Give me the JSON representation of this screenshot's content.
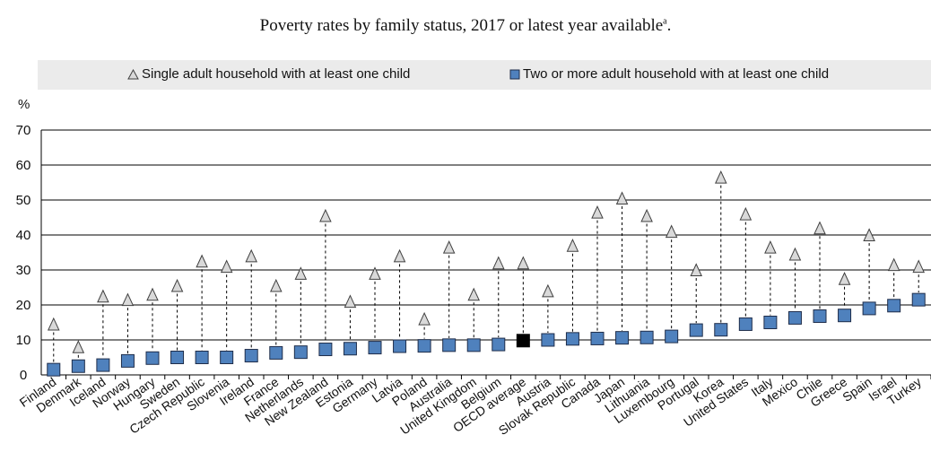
{
  "chart_data": {
    "type": "scatter",
    "title": "Poverty rates by family status, 2017 or latest year available",
    "title_sup": "a",
    "unit_label": "%",
    "ylim": [
      0,
      70
    ],
    "yticks": [
      0,
      10,
      20,
      30,
      40,
      50,
      60,
      70
    ],
    "legend_position": "top",
    "categories": [
      "Finland",
      "Denmark",
      "Iceland",
      "Norway",
      "Hungary",
      "Sweden",
      "Czech Republic",
      "Slovenia",
      "Ireland",
      "France",
      "Netherlands",
      "New Zealand",
      "Estonia",
      "Germany",
      "Latvia",
      "Poland",
      "Australia",
      "United Kingdom",
      "Belgium",
      "OECD average",
      "Austria",
      "Slovak Republic",
      "Canada",
      "Japan",
      "Lithuania",
      "Luxembourg",
      "Portugal",
      "Korea",
      "United States",
      "Italy",
      "Mexico",
      "Chile",
      "Greece",
      "Spain",
      "Israel",
      "Turkey"
    ],
    "highlight_category": "OECD average",
    "series": [
      {
        "name": "Single adult household with at least one child",
        "marker": "triangle",
        "values": [
          14.5,
          8,
          22.5,
          21.5,
          23,
          25.5,
          32.5,
          31,
          34,
          25.5,
          29,
          45.5,
          21,
          29,
          34,
          16,
          36.5,
          23,
          32,
          32,
          24,
          37,
          46.5,
          50.5,
          45.5,
          41,
          30,
          56.5,
          46,
          36.5,
          34.5,
          42,
          27.5,
          40,
          31.5,
          31
        ]
      },
      {
        "name": "Two or more adult household with at least one child",
        "marker": "square",
        "values": [
          1.5,
          2.5,
          2.8,
          4,
          4.8,
          5,
          5,
          5,
          5.5,
          6.3,
          6.5,
          7.3,
          7.5,
          7.8,
          8.2,
          8.3,
          8.5,
          8.5,
          8.7,
          9.8,
          10,
          10.3,
          10.4,
          10.6,
          10.7,
          11,
          12.8,
          12.9,
          14.5,
          15,
          16.3,
          16.8,
          17,
          19,
          19.8,
          21.5
        ]
      }
    ]
  },
  "colors": {
    "square_fill": "#4f81bd",
    "square_stroke": "#1f2d4a",
    "highlight_fill": "#000000",
    "triangle_fill": "#d9d9d9",
    "triangle_stroke": "#404040",
    "legend_bg": "#ebebeb"
  }
}
